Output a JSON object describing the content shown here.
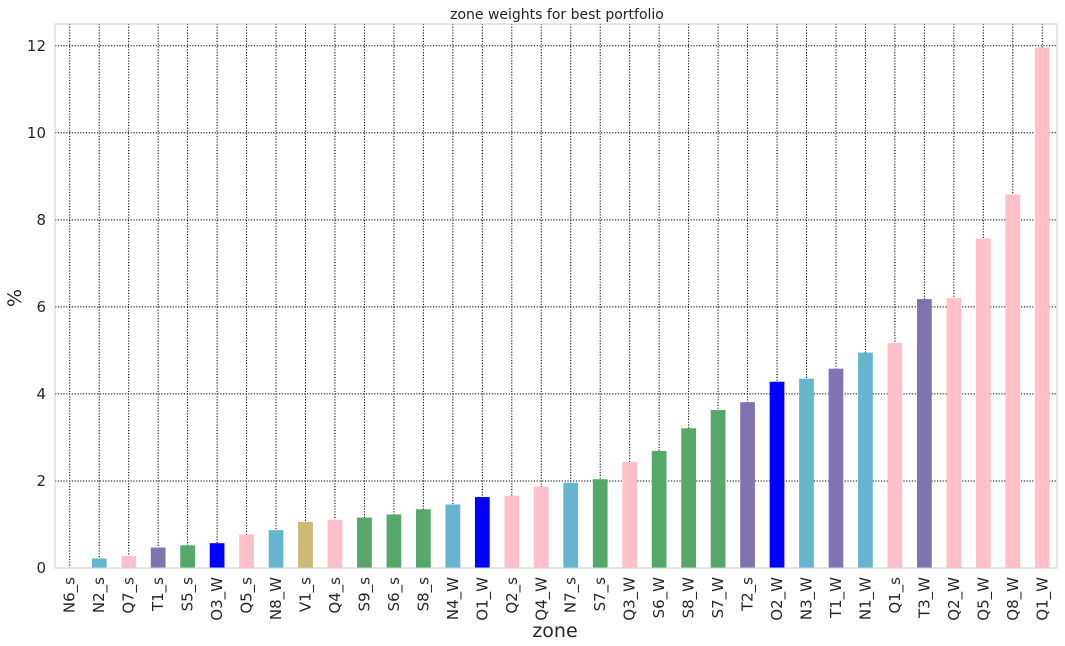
{
  "chart_data": {
    "type": "bar",
    "title": "zone weights for best portfolio",
    "xlabel": "zone",
    "ylabel": "%",
    "ylim": [
      0,
      12.5
    ],
    "yticks": [
      0,
      2,
      4,
      6,
      8,
      10,
      12
    ],
    "grid": true,
    "categories": [
      "N6_s",
      "N2_s",
      "Q7_s",
      "T1_s",
      "S5_s",
      "O3_W",
      "Q5_s",
      "N8_W",
      "V1_s",
      "Q4_s",
      "S9_s",
      "S6_s",
      "S8_s",
      "N4_W",
      "O1_W",
      "Q2_s",
      "Q4_W",
      "N7_s",
      "S7_s",
      "Q3_W",
      "S6_W",
      "S8_W",
      "S7_W",
      "T2_s",
      "O2_W",
      "N3_W",
      "T1_W",
      "N1_W",
      "Q1_s",
      "T3_W",
      "Q2_W",
      "Q5_W",
      "Q8_W",
      "Q1_W"
    ],
    "values": [
      0.0,
      0.22,
      0.28,
      0.47,
      0.52,
      0.57,
      0.77,
      0.87,
      1.06,
      1.11,
      1.16,
      1.23,
      1.35,
      1.46,
      1.63,
      1.66,
      1.87,
      1.96,
      2.04,
      2.44,
      2.69,
      3.21,
      3.63,
      3.81,
      4.28,
      4.35,
      4.58,
      4.95,
      5.17,
      6.18,
      6.2,
      7.57,
      8.58,
      11.96
    ],
    "colors": [
      "#64b5cd",
      "#64b5cd",
      "#ffc0cb",
      "#8172b2",
      "#55a868",
      "#0000ff",
      "#ffc0cb",
      "#64b5cd",
      "#ccb974",
      "#ffc0cb",
      "#55a868",
      "#55a868",
      "#55a868",
      "#64b5cd",
      "#0000ff",
      "#ffc0cb",
      "#ffc0cb",
      "#64b5cd",
      "#55a868",
      "#ffc0cb",
      "#55a868",
      "#55a868",
      "#55a868",
      "#8172b2",
      "#0000ff",
      "#64b5cd",
      "#8172b2",
      "#64b5cd",
      "#ffc0cb",
      "#8172b2",
      "#ffc0cb",
      "#ffc0cb",
      "#ffc0cb",
      "#ffc0cb"
    ]
  }
}
